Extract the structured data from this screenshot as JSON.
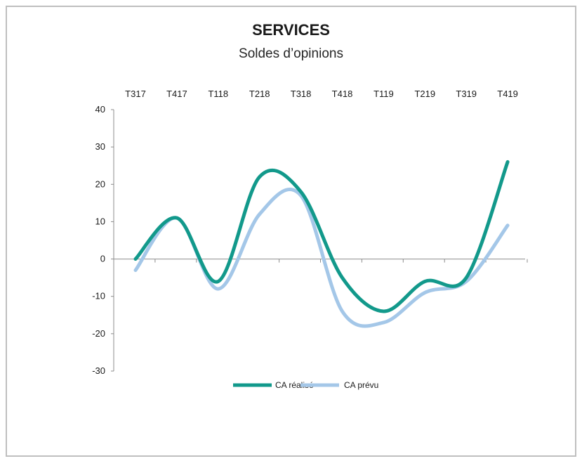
{
  "chart_data": {
    "type": "line",
    "title": "SERVICES",
    "subtitle": "Soldes d’opinions",
    "categories": [
      "T317",
      "T417",
      "T118",
      "T218",
      "T318",
      "T418",
      "T119",
      "T219",
      "T319",
      "T419"
    ],
    "ylim": [
      -30,
      40
    ],
    "yticks": [
      40,
      30,
      20,
      10,
      0,
      -10,
      -20,
      -30
    ],
    "x_tick_position": "top",
    "grid": false,
    "legend_position": "bottom",
    "series": [
      {
        "name": "CA réalisé",
        "color": "#12998b",
        "values": [
          0,
          11,
          -6,
          22,
          18,
          -5,
          -14,
          -6,
          -5,
          26
        ]
      },
      {
        "name": "CA prévu",
        "color": "#a4c7e8",
        "values": [
          -3,
          11,
          -8,
          12,
          17,
          -14,
          -17,
          -9,
          -6,
          9
        ]
      }
    ]
  }
}
